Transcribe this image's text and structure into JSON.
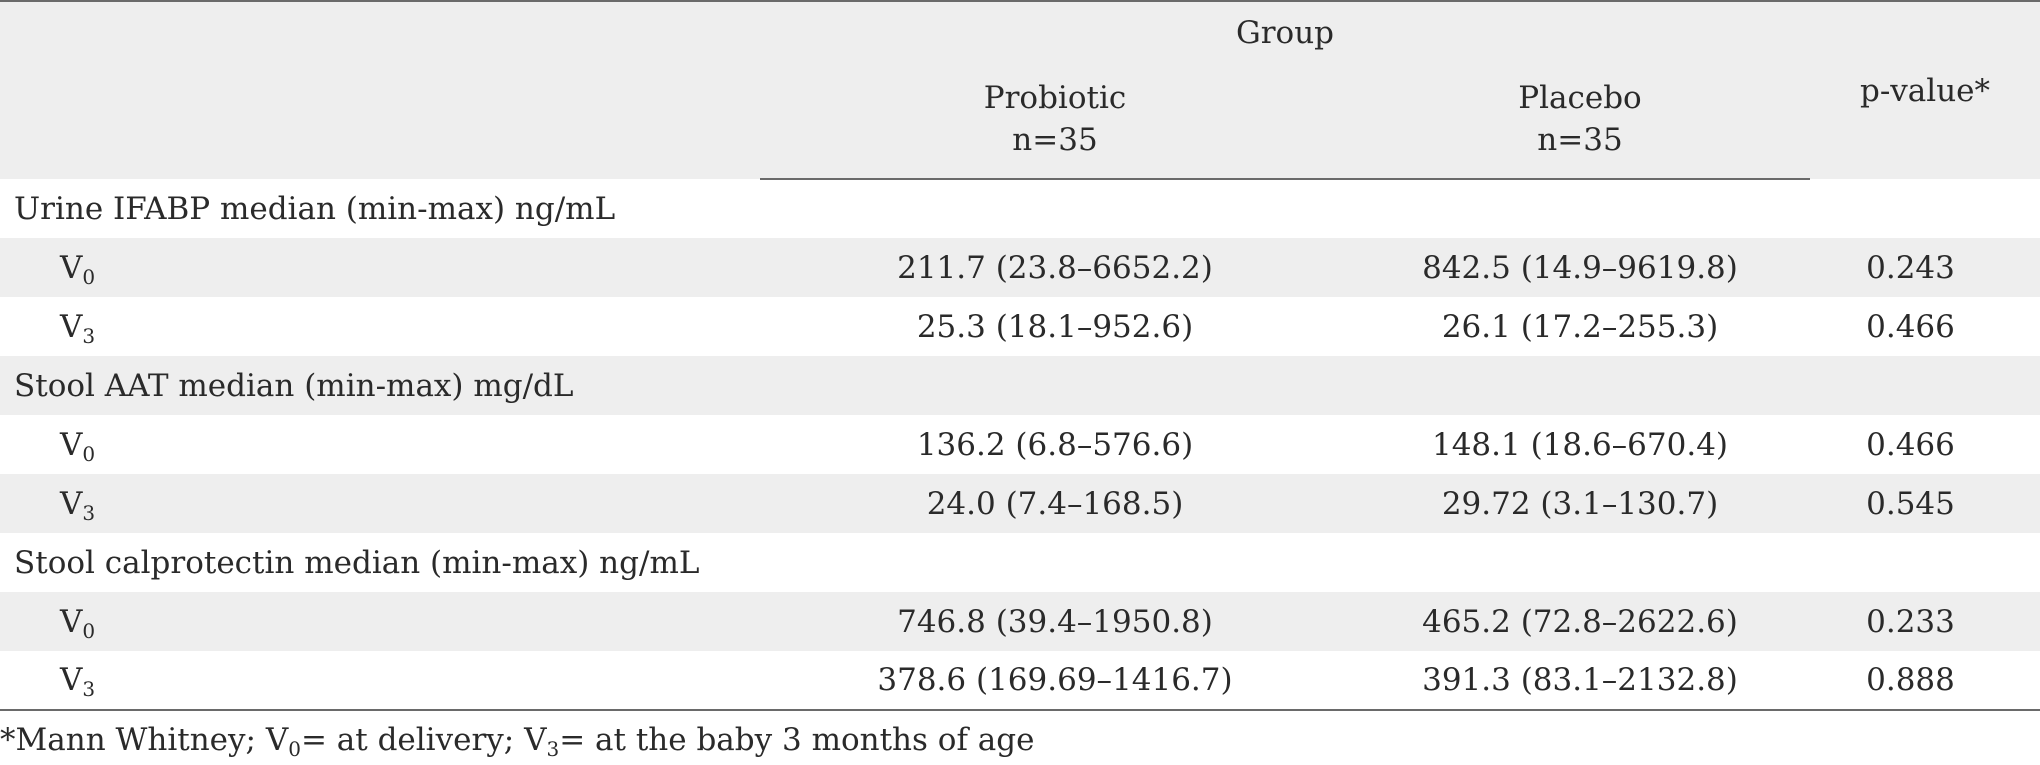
{
  "header": {
    "group_label": "Group",
    "pvalue_label": "p-value*",
    "arms": [
      {
        "name": "Probiotic",
        "n": "n=35"
      },
      {
        "name": "Placebo",
        "n": "n=35"
      }
    ]
  },
  "visits": {
    "v0_letter": "V",
    "v0_sub": "0",
    "v3_letter": "V",
    "v3_sub": "3"
  },
  "sections": [
    {
      "title": "Urine IFABP median (min-max) ng/mL",
      "rows": [
        {
          "probiotic": "211.7 (23.8–6652.2)",
          "placebo": "842.5 (14.9–9619.8)",
          "p": "0.243"
        },
        {
          "probiotic": "25.3 (18.1–952.6)",
          "placebo": "26.1 (17.2–255.3)",
          "p": "0.466"
        }
      ]
    },
    {
      "title": "Stool AAT median (min-max) mg/dL",
      "rows": [
        {
          "probiotic": "136.2 (6.8–576.6)",
          "placebo": "148.1 (18.6–670.4)",
          "p": "0.466"
        },
        {
          "probiotic": "24.0 (7.4–168.5)",
          "placebo": "29.72 (3.1–130.7)",
          "p": "0.545"
        }
      ]
    },
    {
      "title": "Stool calprotectin median (min-max) ng/mL",
      "rows": [
        {
          "probiotic": "746.8 (39.4–1950.8)",
          "placebo": "465.2 (72.8–2622.6)",
          "p": "0.233"
        },
        {
          "probiotic": "378.6 (169.69–1416.7)",
          "placebo": "391.3 (83.1–2132.8)",
          "p": "0.888"
        }
      ]
    }
  ],
  "footnote": {
    "part1": "*Mann Whitney; V",
    "sub1": "0",
    "part2": "= at delivery; V",
    "sub2": "3",
    "part3": "= at the baby 3 months of age"
  }
}
